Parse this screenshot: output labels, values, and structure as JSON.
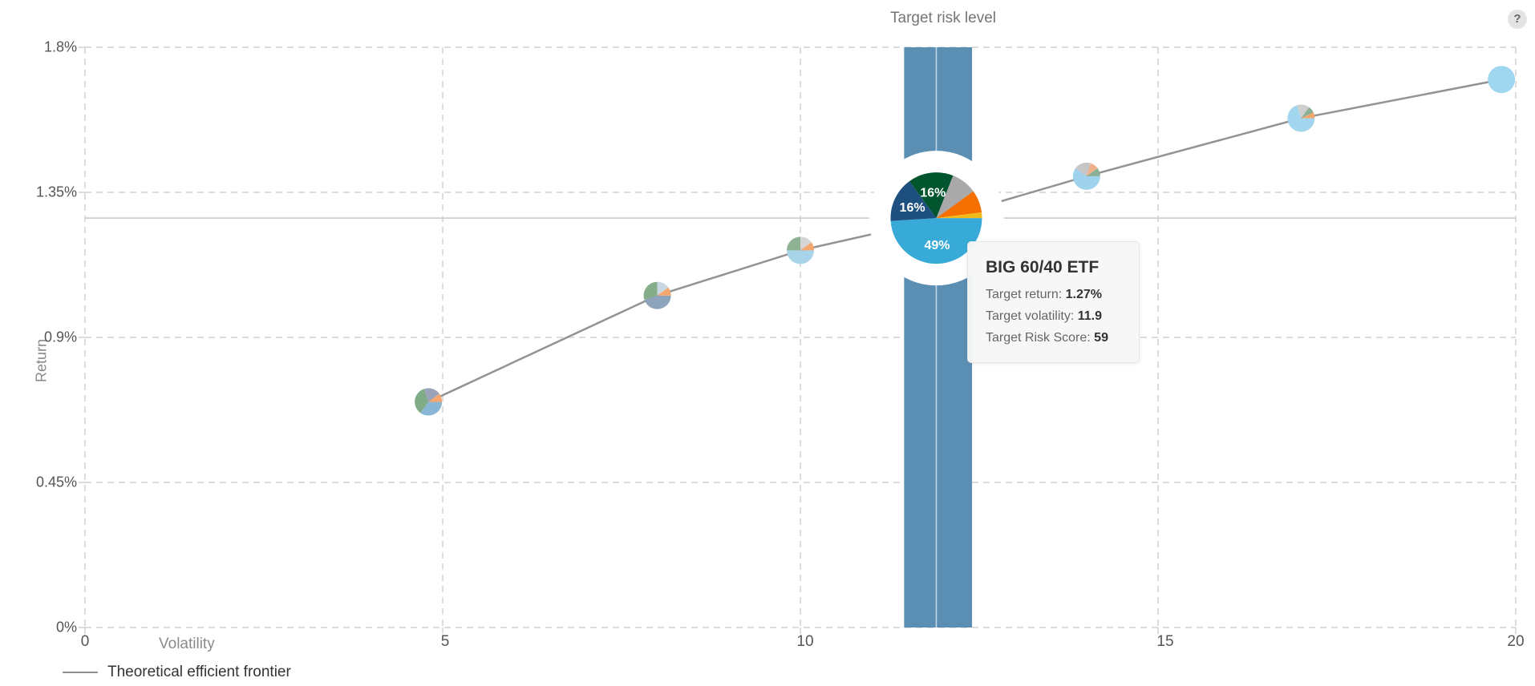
{
  "header": {
    "title": "Target risk level",
    "help_icon": "?"
  },
  "chart_data": {
    "type": "scatter",
    "xlabel": "Volatility",
    "ylabel": "Return",
    "xlim": [
      0,
      20
    ],
    "ylim": [
      0,
      1.8
    ],
    "x_ticks": [
      "0",
      "5",
      "10",
      "15",
      "20"
    ],
    "y_ticks": [
      "0%",
      "0.45%",
      "0.9%",
      "1.35%",
      "1.8%"
    ],
    "grid": true,
    "legend_position": "bottom-left",
    "frontier": {
      "name": "Theoretical efficient frontier",
      "points": [
        [
          4.8,
          0.7
        ],
        [
          8.0,
          1.03
        ],
        [
          10.0,
          1.17
        ],
        [
          12.0,
          1.27
        ],
        [
          14.0,
          1.4
        ],
        [
          17.0,
          1.58
        ],
        [
          19.8,
          1.7
        ]
      ]
    },
    "target_band": {
      "x_from": 11.45,
      "x_to": 12.4,
      "x_marker": 11.9,
      "color": "#5a8eb3"
    },
    "target_return_line": 1.27,
    "portfolios": [
      {
        "x": 4.8,
        "y": 0.7,
        "slices": [
          [
            0.35,
            "#8ab6d6"
          ],
          [
            0.35,
            "#7fab87"
          ],
          [
            0.2,
            "#9aa3b8"
          ],
          [
            0.1,
            "#f5a66d"
          ]
        ]
      },
      {
        "x": 8.0,
        "y": 1.03,
        "slices": [
          [
            0.45,
            "#8ea4bd"
          ],
          [
            0.3,
            "#86ad8a"
          ],
          [
            0.15,
            "#c8d8e3"
          ],
          [
            0.1,
            "#f5a66d"
          ]
        ]
      },
      {
        "x": 10.0,
        "y": 1.17,
        "slices": [
          [
            0.5,
            "#a8d4ea"
          ],
          [
            0.25,
            "#8eb293"
          ],
          [
            0.15,
            "#d5d5d5"
          ],
          [
            0.1,
            "#f5a66d"
          ]
        ]
      },
      {
        "x": 14.0,
        "y": 1.4,
        "slices": [
          [
            0.6,
            "#9fd2ec"
          ],
          [
            0.2,
            "#c6c6c6"
          ],
          [
            0.1,
            "#f2b08a"
          ],
          [
            0.1,
            "#8bb094"
          ]
        ]
      },
      {
        "x": 17.0,
        "y": 1.58,
        "slices": [
          [
            0.7,
            "#a2d5ee"
          ],
          [
            0.15,
            "#cfcfcf"
          ],
          [
            0.08,
            "#8bb094"
          ],
          [
            0.07,
            "#f5a66d"
          ]
        ]
      },
      {
        "x": 19.8,
        "y": 1.7,
        "slices": [
          [
            1.0,
            "#9fd6f0"
          ]
        ]
      }
    ],
    "selected": {
      "x": 11.9,
      "y": 1.27,
      "slices": [
        {
          "value": 0.49,
          "color": "#38aad8",
          "label": "49%"
        },
        {
          "value": 0.16,
          "color": "#1d4f7f",
          "label": "16%"
        },
        {
          "value": 0.16,
          "color": "#00552e",
          "label": "16%"
        },
        {
          "value": 0.09,
          "color": "#a9a9a9",
          "label": ""
        },
        {
          "value": 0.08,
          "color": "#f57000",
          "label": ""
        },
        {
          "value": 0.02,
          "color": "#f1bc1a",
          "label": ""
        }
      ]
    }
  },
  "tooltip": {
    "title": "BIG 60/40 ETF",
    "return_label": "Target return:",
    "return_value": "1.27%",
    "volatility_label": "Target volatility:",
    "volatility_value": "11.9",
    "score_label": "Target Risk Score:",
    "score_value": "59"
  }
}
